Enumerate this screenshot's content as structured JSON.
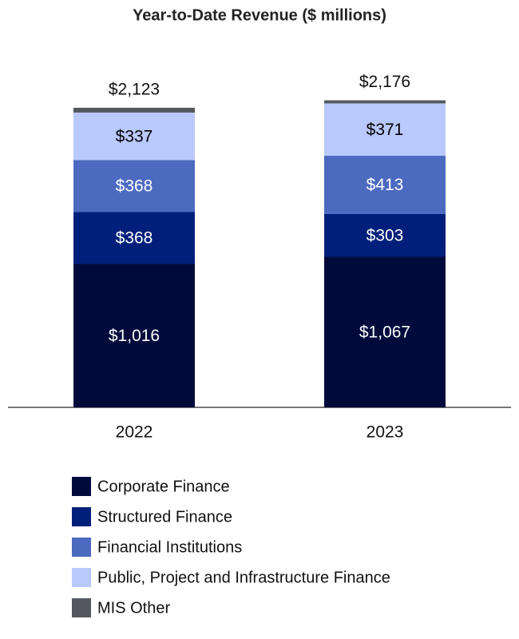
{
  "chart_data": {
    "type": "stacked-bar",
    "title": "Year-to-Date Revenue ($ millions)",
    "categories": [
      "2022",
      "2023"
    ],
    "series": [
      {
        "name": "Corporate Finance",
        "color": "#000b3c",
        "values": [
          1016,
          1067
        ],
        "value_labels": [
          "$1,016",
          "$1,067"
        ]
      },
      {
        "name": "Structured Finance",
        "color": "#001f7a",
        "values": [
          368,
          303
        ],
        "value_labels": [
          "$368",
          "$303"
        ]
      },
      {
        "name": "Financial Institutions",
        "color": "#4b6ac0",
        "values": [
          368,
          413
        ],
        "value_labels": [
          "$368",
          "$413"
        ]
      },
      {
        "name": "Public, Project and Infrastructure Finance",
        "color": "#b9c9fc",
        "values": [
          337,
          371
        ],
        "value_labels": [
          "$337",
          "$371"
        ]
      },
      {
        "name": "MIS Other",
        "color": "#54585e",
        "values": [
          34,
          22
        ]
      }
    ],
    "totals": {
      "values": [
        2123,
        2176
      ],
      "value_labels": [
        "$2,123",
        "$2,176"
      ]
    },
    "ylim": [
      0,
      2400
    ]
  }
}
